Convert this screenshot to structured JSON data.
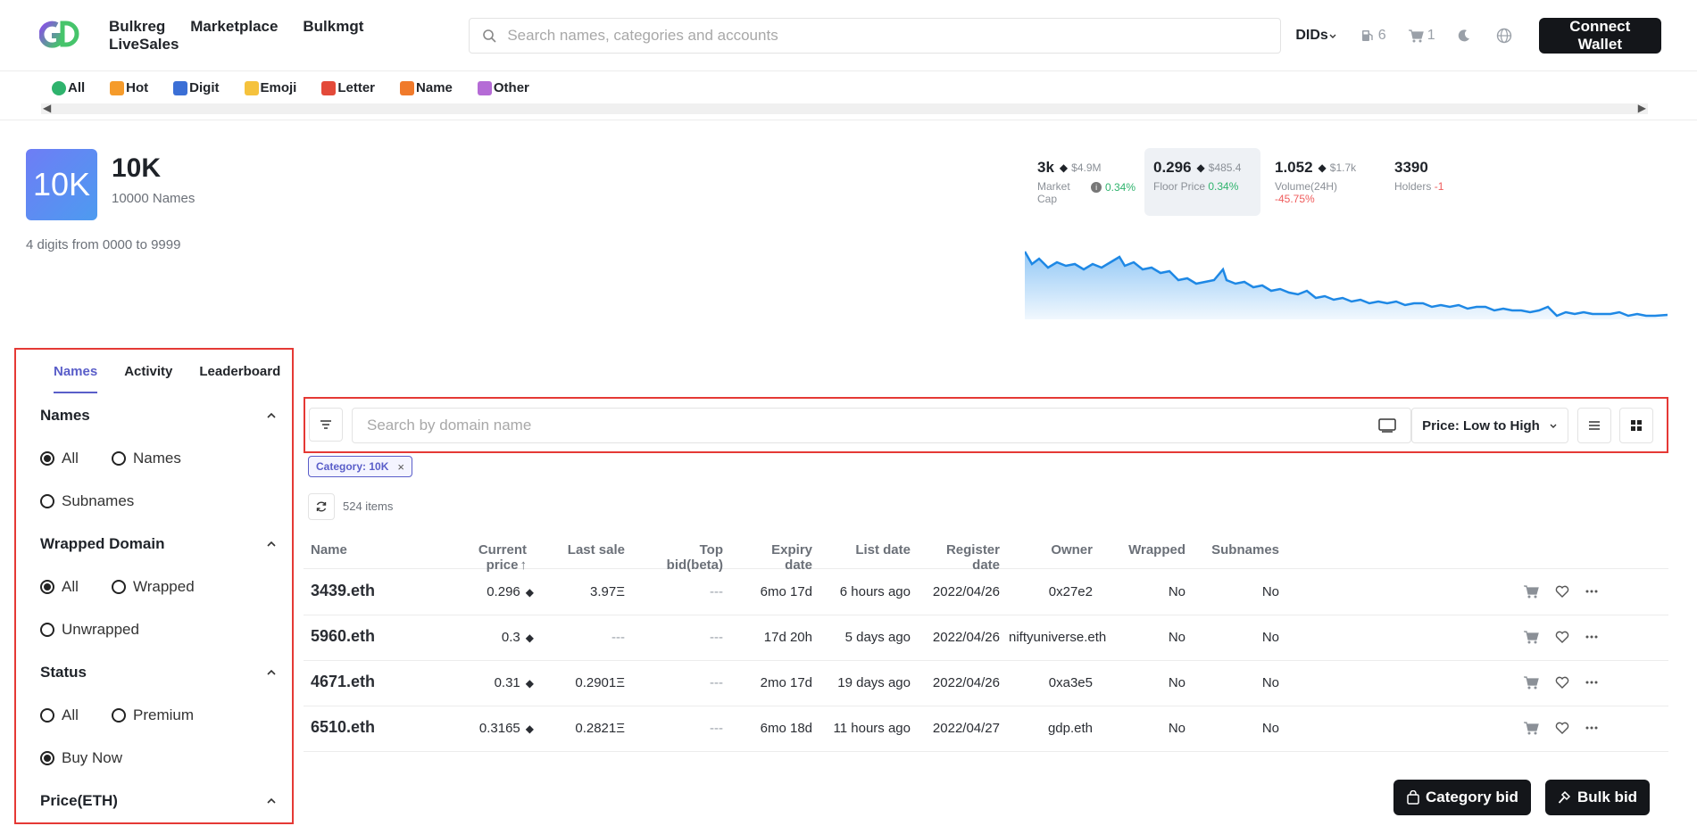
{
  "header": {
    "logo_text": "GD",
    "nav": [
      "Bulkreg",
      "Marketplace",
      "Bulkmgt",
      "LiveSales"
    ],
    "search_placeholder": "Search names, categories and accounts",
    "dids_label": "DIDs",
    "gas_count": "6",
    "cart_count": "1",
    "connect_label": "Connect Wallet"
  },
  "categories": [
    {
      "label": "All",
      "color": "#2fb36d"
    },
    {
      "label": "Hot",
      "color": "#f59b2b"
    },
    {
      "label": "Digit",
      "color": "#3b6fd6"
    },
    {
      "label": "Emoji",
      "color": "#f5c23d"
    },
    {
      "label": "Letter",
      "color": "#e34a3a"
    },
    {
      "label": "Name",
      "color": "#f07a2b"
    },
    {
      "label": "Other",
      "color": "#b56bd6"
    }
  ],
  "collection": {
    "avatar_text": "10K",
    "title": "10K",
    "subtitle": "10000 Names",
    "description": "4 digits from 0000 to 9999"
  },
  "stats": [
    {
      "value": "3k",
      "usd": "$4.9M",
      "label": "Market Cap",
      "change": "0.34%",
      "change_type": "up"
    },
    {
      "value": "0.296",
      "usd": "$485.4",
      "label": "Floor Price",
      "change": "0.34%",
      "change_type": "up"
    },
    {
      "value": "1.052",
      "usd": "$1.7k",
      "label": "Volume(24H)",
      "change": "-45.75%",
      "change_type": "down"
    },
    {
      "value": "3390",
      "usd": "",
      "label": "Holders",
      "change": "-1",
      "change_type": "down"
    }
  ],
  "sidebar": {
    "tabs": [
      "Names",
      "Activity",
      "Leaderboard"
    ],
    "sections": [
      {
        "title": "Names",
        "options": [
          "All",
          "Names",
          "Subnames"
        ],
        "selected": 0
      },
      {
        "title": "Wrapped Domain",
        "options": [
          "All",
          "Wrapped",
          "Unwrapped"
        ],
        "selected": 0
      },
      {
        "title": "Status",
        "options": [
          "All",
          "Premium",
          "Buy Now"
        ],
        "selected": 2
      },
      {
        "title": "Price(ETH)",
        "options": [],
        "selected": -1
      }
    ]
  },
  "toolbar": {
    "search_placeholder": "Search by domain name",
    "sort_label": "Price: Low to High"
  },
  "filter_chip": "Category: 10K",
  "items_count": "524 items",
  "table": {
    "columns": [
      "Name",
      "Current price",
      "Last sale",
      "Top bid(beta)",
      "Expiry date",
      "List date",
      "Register date",
      "Owner",
      "Wrapped",
      "Subnames"
    ],
    "rows": [
      {
        "name": "3439.eth",
        "price": "0.296",
        "last_sale": "3.97Ξ",
        "top_bid": "---",
        "expiry": "6mo 17d",
        "list": "6 hours ago",
        "register": "2022/04/26",
        "owner": "0x27e2",
        "wrapped": "No",
        "subnames": "No"
      },
      {
        "name": "5960.eth",
        "price": "0.3",
        "last_sale": "---",
        "top_bid": "---",
        "expiry": "17d 20h",
        "list": "5 days ago",
        "register": "2022/04/26",
        "owner": "niftyuniverse.eth",
        "wrapped": "No",
        "subnames": "No"
      },
      {
        "name": "4671.eth",
        "price": "0.31",
        "last_sale": "0.2901Ξ",
        "top_bid": "---",
        "expiry": "2mo 17d",
        "list": "19 days ago",
        "register": "2022/04/26",
        "owner": "0xa3e5",
        "wrapped": "No",
        "subnames": "No"
      },
      {
        "name": "6510.eth",
        "price": "0.3165",
        "last_sale": "0.2821Ξ",
        "top_bid": "---",
        "expiry": "6mo 18d",
        "list": "11 hours ago",
        "register": "2022/04/27",
        "owner": "gdp.eth",
        "wrapped": "No",
        "subnames": "No"
      }
    ]
  },
  "footer": {
    "category_bid": "Category bid",
    "bulk_bid": "Bulk bid"
  }
}
